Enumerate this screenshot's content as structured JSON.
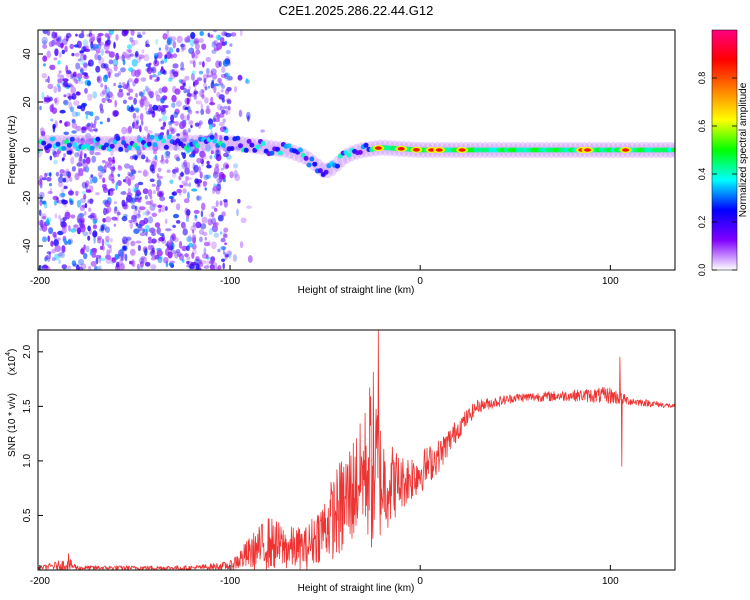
{
  "figure_title": "C2E1.2025.286.22.44.G12",
  "chart_data": [
    {
      "type": "heatmap",
      "title": "C2E1.2025.286.22.44.G12",
      "xlabel": "Height of straight line (km)",
      "ylabel": "Frequency (Hz)",
      "xlim": [
        -201,
        134
      ],
      "ylim": [
        -50,
        50
      ],
      "x_ticks": [
        -200,
        -100,
        0,
        100
      ],
      "y_ticks": [
        -40,
        -20,
        0,
        20,
        40
      ],
      "colorbar": {
        "label": "Normalized spectral amplitude",
        "range": [
          0,
          1
        ],
        "ticks": [
          0.0,
          0.2,
          0.4,
          0.6,
          0.8
        ],
        "tick_labels": [
          "0.0",
          "0.2",
          "0.4",
          "0.6",
          "0.8"
        ],
        "colormap": [
          "#ffffff",
          "#8000ff",
          "#0000ff",
          "#00ffff",
          "#00ff00",
          "#ffff00",
          "#ff8000",
          "#ff0000",
          "#ff0080"
        ]
      },
      "center_track": [
        {
          "x": -200,
          "f": 3
        },
        {
          "x": -180,
          "f": 3
        },
        {
          "x": -160,
          "f": 2.5
        },
        {
          "x": -140,
          "f": 3
        },
        {
          "x": -120,
          "f": 3
        },
        {
          "x": -100,
          "f": 3
        },
        {
          "x": -90,
          "f": 2
        },
        {
          "x": -80,
          "f": 1
        },
        {
          "x": -70,
          "f": 0
        },
        {
          "x": -60,
          "f": -3
        },
        {
          "x": -55,
          "f": -6
        },
        {
          "x": -50,
          "f": -9
        },
        {
          "x": -45,
          "f": -7
        },
        {
          "x": -40,
          "f": -3
        },
        {
          "x": -35,
          "f": -1
        },
        {
          "x": -30,
          "f": 0
        },
        {
          "x": -20,
          "f": 1
        },
        {
          "x": 0,
          "f": 0
        },
        {
          "x": 50,
          "f": 0
        },
        {
          "x": 100,
          "f": 0
        },
        {
          "x": 134,
          "f": 0
        }
      ],
      "scatter_region_km": [
        -200,
        -100
      ],
      "hot_spots_km": [
        -22,
        -10,
        -2,
        6,
        10,
        22,
        85,
        88,
        108
      ]
    },
    {
      "type": "line",
      "xlabel": "Height of straight line (km)",
      "ylabel": "SNR (10 * v/v)",
      "y_multiplier": "(x10",
      "y_multiplier_exp": "4",
      "multiplier_close": ")",
      "xlim": [
        -201,
        134
      ],
      "ylim": [
        0,
        2.2
      ],
      "x_ticks": [
        -200,
        -100,
        0,
        100
      ],
      "y_ticks": [
        0.5,
        1.0,
        1.5,
        2.0
      ],
      "y_tick_labels": [
        "0.5",
        "1.0",
        "1.5",
        "2.0"
      ],
      "series": [
        {
          "name": "SNR",
          "color": "#ee3333",
          "envelope": [
            {
              "x": -201,
              "base": 0.02,
              "amp": 0.01
            },
            {
              "x": -185,
              "base": 0.05,
              "amp": 0.06
            },
            {
              "x": -180,
              "base": 0.02,
              "amp": 0.02
            },
            {
              "x": -120,
              "base": 0.02,
              "amp": 0.02
            },
            {
              "x": -100,
              "base": 0.04,
              "amp": 0.04
            },
            {
              "x": -90,
              "base": 0.15,
              "amp": 0.15
            },
            {
              "x": -80,
              "base": 0.25,
              "amp": 0.25
            },
            {
              "x": -70,
              "base": 0.2,
              "amp": 0.2
            },
            {
              "x": -60,
              "base": 0.2,
              "amp": 0.2
            },
            {
              "x": -50,
              "base": 0.4,
              "amp": 0.3
            },
            {
              "x": -40,
              "base": 0.6,
              "amp": 0.5
            },
            {
              "x": -30,
              "base": 0.9,
              "amp": 0.5
            },
            {
              "x": -25,
              "base": 1.0,
              "amp": 0.9
            },
            {
              "x": -20,
              "base": 0.8,
              "amp": 0.5
            },
            {
              "x": -10,
              "base": 0.8,
              "amp": 0.25
            },
            {
              "x": 0,
              "base": 0.9,
              "amp": 0.2
            },
            {
              "x": 10,
              "base": 1.05,
              "amp": 0.15
            },
            {
              "x": 20,
              "base": 1.3,
              "amp": 0.1
            },
            {
              "x": 30,
              "base": 1.5,
              "amp": 0.06
            },
            {
              "x": 50,
              "base": 1.58,
              "amp": 0.04
            },
            {
              "x": 80,
              "base": 1.6,
              "amp": 0.05
            },
            {
              "x": 100,
              "base": 1.6,
              "amp": 0.08
            },
            {
              "x": 110,
              "base": 1.55,
              "amp": 0.04
            },
            {
              "x": 134,
              "base": 1.5,
              "amp": 0.02
            }
          ],
          "peaks": [
            {
              "x": -22,
              "y": 2.2
            },
            {
              "x": -185,
              "y": 0.15
            },
            {
              "x": 105,
              "y": 1.95
            },
            {
              "x": 106,
              "y": 0.95
            }
          ]
        }
      ]
    }
  ]
}
